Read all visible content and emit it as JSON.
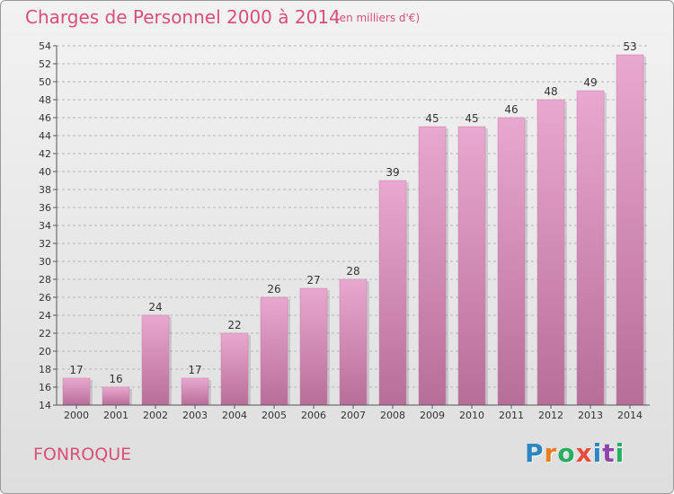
{
  "header": {
    "title": "Charges de Personnel 2000 à 2014",
    "subtitle": "(en milliers d'€)"
  },
  "footer": {
    "place": "FONROQUE",
    "logo_letters": [
      "P",
      "r",
      "o",
      "x",
      "i",
      "t",
      "i"
    ]
  },
  "colors": {
    "accent": "#d94f7a",
    "bar_top": "#e9a8cf",
    "bar_bottom": "#b76e99",
    "logo": [
      "#2e86c1",
      "#e67e22",
      "#27ae60",
      "#e74c3c",
      "#2e86c1",
      "#8e44ad",
      "#27ae60"
    ]
  },
  "chart_data": {
    "type": "bar",
    "categories": [
      "2000",
      "2001",
      "2002",
      "2003",
      "2004",
      "2005",
      "2006",
      "2007",
      "2008",
      "2009",
      "2010",
      "2011",
      "2012",
      "2013",
      "2014"
    ],
    "values": [
      17,
      16,
      24,
      17,
      22,
      26,
      27,
      28,
      39,
      45,
      45,
      46,
      48,
      49,
      53
    ],
    "title": "Charges de Personnel 2000 à 2014",
    "subtitle": "(en milliers d'€)",
    "ylim": [
      14,
      54
    ],
    "yticks": [
      14,
      16,
      18,
      20,
      22,
      24,
      26,
      28,
      30,
      32,
      34,
      36,
      38,
      40,
      42,
      44,
      46,
      48,
      50,
      52,
      54
    ],
    "grid": "horizontal dashed",
    "legend": "none"
  }
}
